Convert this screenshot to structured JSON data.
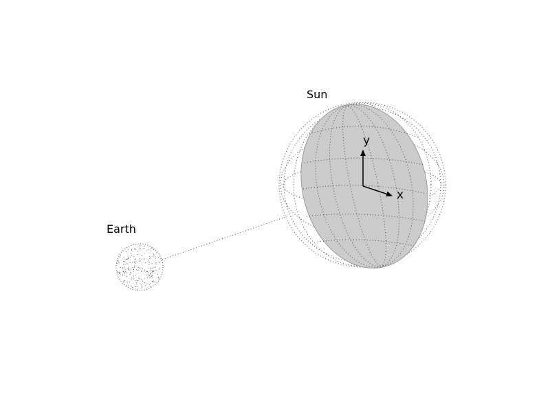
{
  "labels": {
    "sun": "Sun",
    "earth": "Earth",
    "axis_x": "x",
    "axis_y": "y"
  },
  "colors": {
    "disk_fill": "#cccccc",
    "disk_edge": "#9a9a9a",
    "dots": "#555555",
    "arrows": "#000000",
    "background": "#ffffff"
  }
}
